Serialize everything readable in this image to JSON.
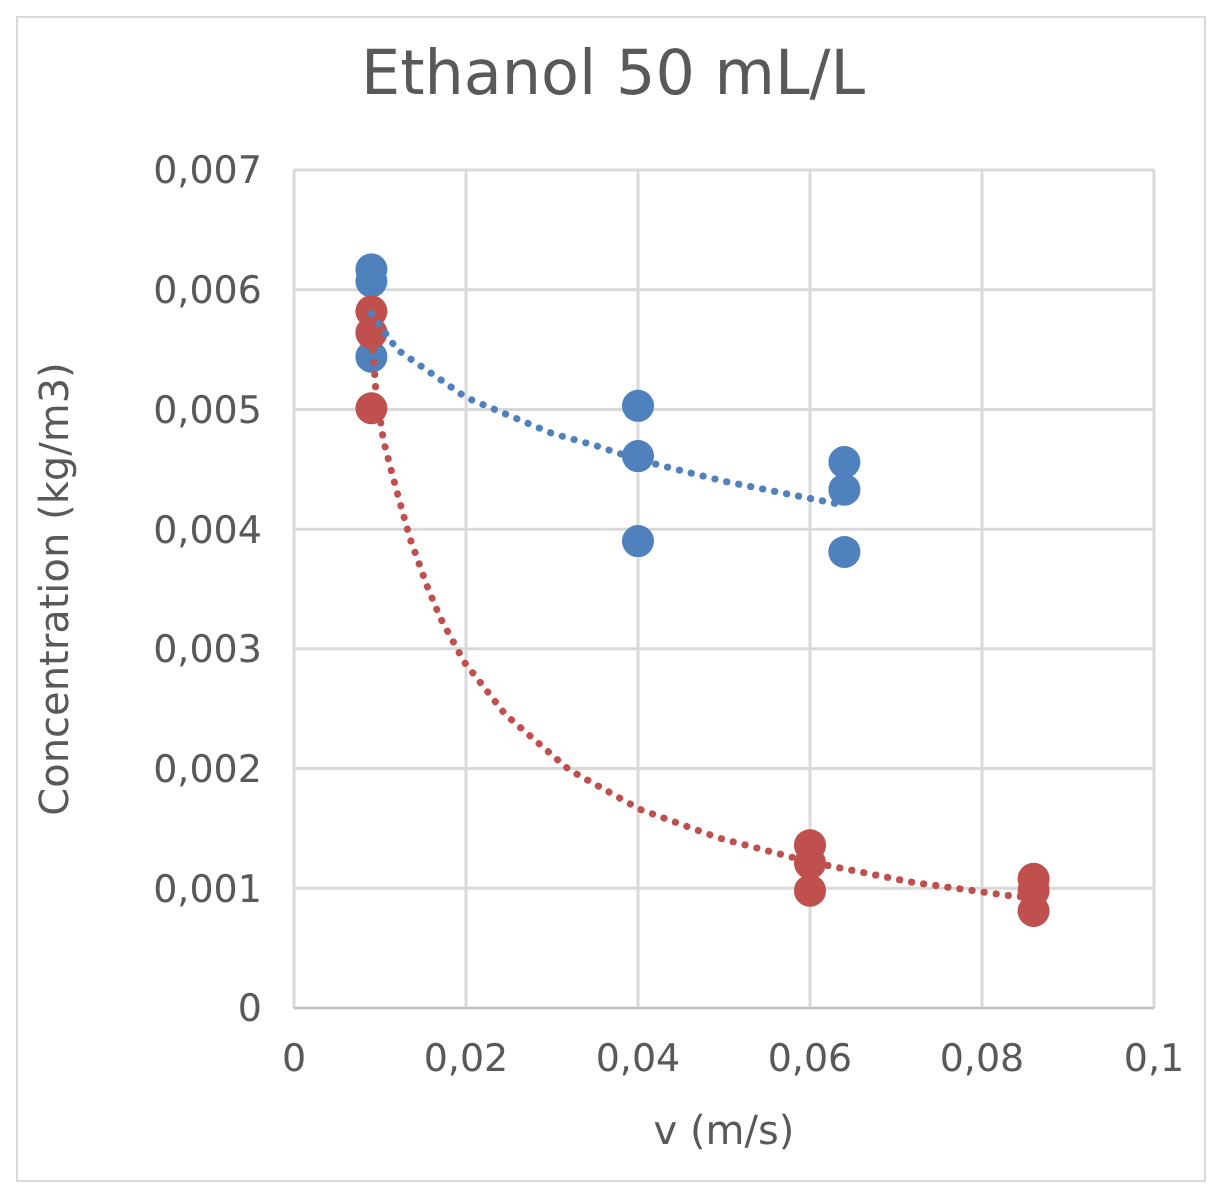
{
  "chart_data": {
    "type": "scatter",
    "title": "Ethanol 50 mL/L",
    "xlabel": "v (m/s)",
    "ylabel": "Concentration  (kg/m3)",
    "xlim": [
      0,
      0.1
    ],
    "ylim": [
      0,
      0.007
    ],
    "xticks": [
      0,
      {
        "value": 0.02,
        "label": "0,02"
      },
      {
        "value": 0.04,
        "label": "0,04"
      },
      {
        "value": 0.06,
        "label": "0,06"
      },
      {
        "value": 0.08,
        "label": "0,08"
      },
      {
        "value": 0.1,
        "label": "0,1"
      }
    ],
    "yticks": [
      0,
      {
        "value": 0.001,
        "label": "0,001"
      },
      {
        "value": 0.002,
        "label": "0,002"
      },
      {
        "value": 0.003,
        "label": "0,003"
      },
      {
        "value": 0.004,
        "label": "0,004"
      },
      {
        "value": 0.005,
        "label": "0,005"
      },
      {
        "value": 0.006,
        "label": "0,006"
      },
      {
        "value": 0.007,
        "label": "0,007"
      }
    ],
    "grid": true,
    "marker": "circle",
    "series": [
      {
        "color": "#4f81bd",
        "x": [
          0.009,
          0.009,
          0.009,
          0.04,
          0.04,
          0.04,
          0.064,
          0.064,
          0.064
        ],
        "values": [
          0.00617,
          0.00607,
          0.00544,
          0.00503,
          0.00461,
          0.0039,
          0.00456,
          0.00433,
          0.00381
        ]
      },
      {
        "color": "#c0504d",
        "x": [
          0.009,
          0.009,
          0.009,
          0.06,
          0.06,
          0.06,
          0.086,
          0.086,
          0.086
        ],
        "values": [
          0.00582,
          0.00564,
          0.00501,
          0.00136,
          0.00121,
          0.00098,
          0.00108,
          0.00098,
          0.00081
        ]
      },
      {
        "type": "line",
        "color": "#4f81bd",
        "marker": "none",
        "line_style": "dotted",
        "x": [
          0.009,
          0.012,
          0.016,
          0.02,
          0.025,
          0.03,
          0.035,
          0.04,
          0.05,
          0.064
        ],
        "values": [
          0.0058,
          0.0055,
          0.0053,
          0.0051,
          0.00495,
          0.0048,
          0.0047,
          0.00458,
          0.0044,
          0.0042
        ]
      },
      {
        "type": "line",
        "color": "#c0504d",
        "marker": "none",
        "line_style": "dotted",
        "x": [
          0.009,
          0.0095,
          0.0104,
          0.0119,
          0.0135,
          0.0155,
          0.017,
          0.0198,
          0.0246,
          0.032,
          0.0402,
          0.0494,
          0.06,
          0.0719,
          0.083,
          0.086
        ],
        "values": [
          0.0057,
          0.00517,
          0.00474,
          0.00433,
          0.00392,
          0.00352,
          0.00326,
          0.00289,
          0.00245,
          0.00199,
          0.00166,
          0.00142,
          0.00122,
          0.00105,
          0.00094,
          0.00092
        ]
      }
    ]
  }
}
